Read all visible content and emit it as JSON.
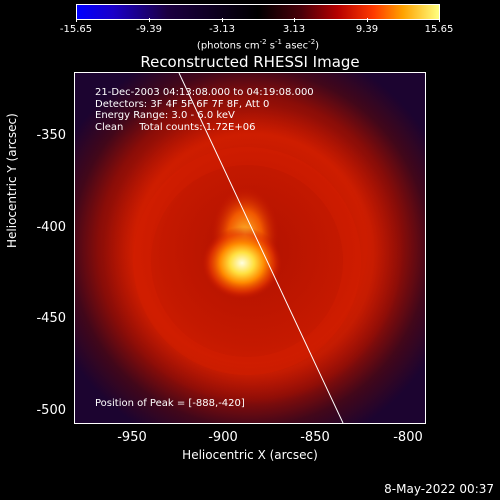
{
  "colorbar": {
    "tick_labels": [
      "-15.65",
      "-9.39",
      "-3.13",
      "3.13",
      "9.39",
      "15.65"
    ],
    "units_prefix": "(photons cm",
    "units_exp1": "-2",
    "units_mid1": " s",
    "units_exp2": "-1",
    "units_mid2": " asec",
    "units_exp3": "-2",
    "units_suffix": ")"
  },
  "title": "Reconstructed RHESSI Image",
  "info": {
    "line1": "21-Dec-2003 04:13:08.000 to 04:19:08.000",
    "line2": "Detectors: 3F 4F 5F 6F 7F 8F, Att 0",
    "line3": "Energy Range: 3.0 - 6.0 keV",
    "line4": "Clean     Total counts: 1.72E+06",
    "peak": "Position of Peak = [-888,-420]"
  },
  "axes": {
    "xlabel": "Heliocentric X (arcsec)",
    "ylabel": "Heliocentric Y (arcsec)",
    "xticks": [
      "-950",
      "-900",
      "-850",
      "-800"
    ],
    "yticks": [
      "-350",
      "-400",
      "-450",
      "-500"
    ]
  },
  "footer": {
    "timestamp": "8-May-2022 00:37"
  },
  "colors": {
    "background": "#000000",
    "foreground": "#ffffff",
    "outer": "#2a0630",
    "ring": "#c81400",
    "peak": "#ffffc8"
  }
}
